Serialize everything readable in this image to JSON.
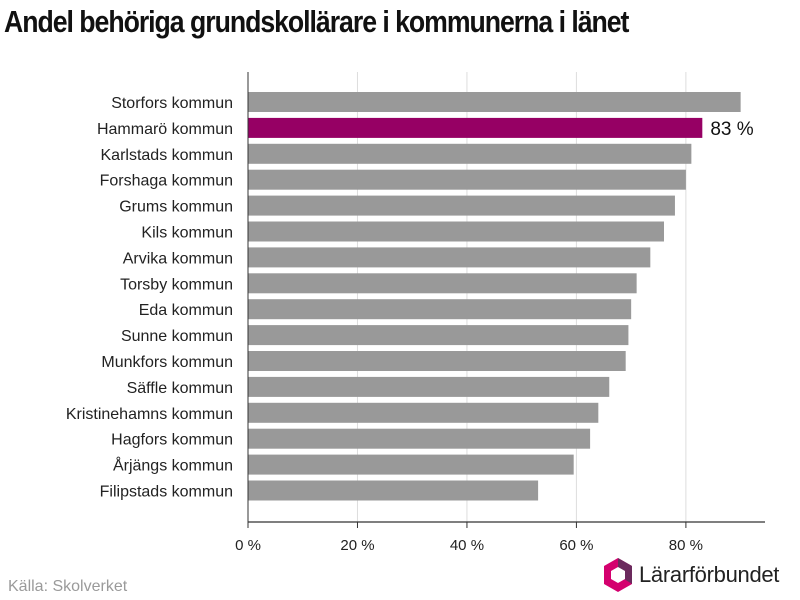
{
  "title": "Andel behöriga grundskollärare i kommunerna i länet",
  "source": "Källa: Skolverket",
  "brand": "Lärarförbundet",
  "colors": {
    "bar": "#999999",
    "highlight": "#960064",
    "grid": "#dddddd",
    "axis": "#333333",
    "logo_pink": "#d4006e",
    "logo_purple": "#6b2a5d"
  },
  "chart_data": {
    "type": "bar",
    "orientation": "horizontal",
    "categories": [
      "Storfors kommun",
      "Hammarö kommun",
      "Karlstads kommun",
      "Forshaga kommun",
      "Grums kommun",
      "Kils kommun",
      "Arvika kommun",
      "Torsby kommun",
      "Eda kommun",
      "Sunne kommun",
      "Munkfors kommun",
      "Säffle kommun",
      "Kristinehamns kommun",
      "Hagfors kommun",
      "Årjängs kommun",
      "Filipstads kommun"
    ],
    "values": [
      90,
      83,
      81,
      80,
      78,
      76,
      73.5,
      71,
      70,
      69.5,
      69,
      66,
      64,
      62.5,
      59.5,
      53
    ],
    "highlight_index": 1,
    "data_labels": [
      {
        "index": 1,
        "text": "83 %"
      }
    ],
    "xlim": [
      0,
      95
    ],
    "xticks": [
      0,
      20,
      40,
      60,
      80
    ],
    "tick_labels": [
      "0 %",
      "20 %",
      "40 %",
      "60 %",
      "80 %"
    ],
    "grid": true,
    "legend": "none"
  }
}
